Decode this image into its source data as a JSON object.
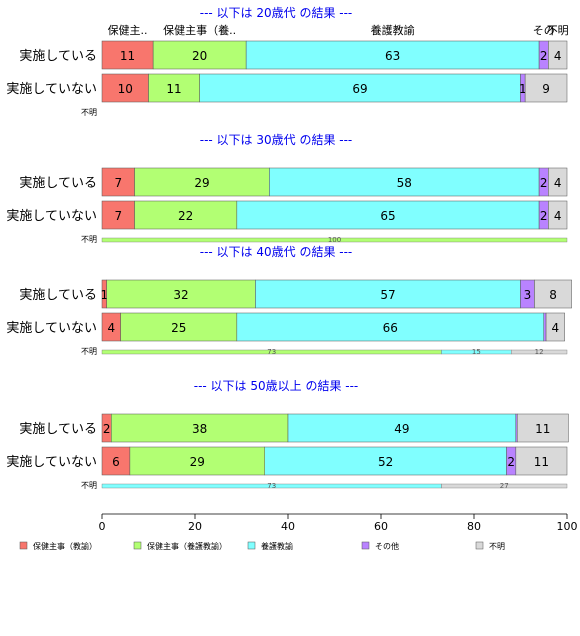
{
  "chart_data": {
    "type": "bar",
    "orientation": "horizontal",
    "stacked": true,
    "xlim": [
      0,
      100
    ],
    "x_ticks": [
      0,
      20,
      40,
      60,
      80,
      100
    ],
    "grid": false,
    "legend_position": "bottom",
    "series": [
      {
        "name": "保健主事（教諭）",
        "color": "#F8766D"
      },
      {
        "name": "保健主事（養護教諭）",
        "color": "#B2FF73"
      },
      {
        "name": "養護教諭",
        "color": "#80FFFF"
      },
      {
        "name": "その他",
        "color": "#B983FF"
      },
      {
        "name": "不明",
        "color": "#D9D9D9"
      }
    ],
    "header_labels": [
      "保健主..",
      "保健主事（養..",
      "養護教諭",
      "その",
      "不明"
    ],
    "panels": [
      {
        "title": "--- 以下は 20歳代 の結果 ---",
        "rows": [
          {
            "label": "実施している",
            "values": [
              11,
              20,
              63,
              2,
              4
            ]
          },
          {
            "label": "実施していない",
            "values": [
              10,
              11,
              69,
              1,
              9
            ]
          }
        ],
        "unknown": {
          "label": "不明",
          "values": []
        }
      },
      {
        "title": "--- 以下は 30歳代 の結果 ---",
        "rows": [
          {
            "label": "実施している",
            "values": [
              7,
              29,
              58,
              2,
              4
            ]
          },
          {
            "label": "実施していない",
            "values": [
              7,
              22,
              65,
              2,
              4
            ]
          }
        ],
        "unknown": {
          "label": "不明",
          "values": [
            0,
            100,
            0,
            0,
            0
          ]
        }
      },
      {
        "title": "--- 以下は 40歳代 の結果 ---",
        "rows": [
          {
            "label": "実施している",
            "values": [
              1,
              32,
              57,
              3,
              8
            ]
          },
          {
            "label": "実施していない",
            "values": [
              4,
              25,
              66,
              0.5,
              4
            ]
          }
        ],
        "unknown": {
          "label": "不明",
          "values": [
            0,
            73,
            15,
            0,
            12
          ]
        }
      },
      {
        "title": "--- 以下は 50歳以上 の結果 ---",
        "rows": [
          {
            "label": "実施している",
            "values": [
              2,
              38,
              49,
              0.3,
              11
            ]
          },
          {
            "label": "実施していない",
            "values": [
              6,
              29,
              52,
              2,
              11
            ]
          }
        ],
        "unknown": {
          "label": "不明",
          "values": [
            0,
            0,
            73,
            0,
            27
          ]
        }
      }
    ]
  }
}
